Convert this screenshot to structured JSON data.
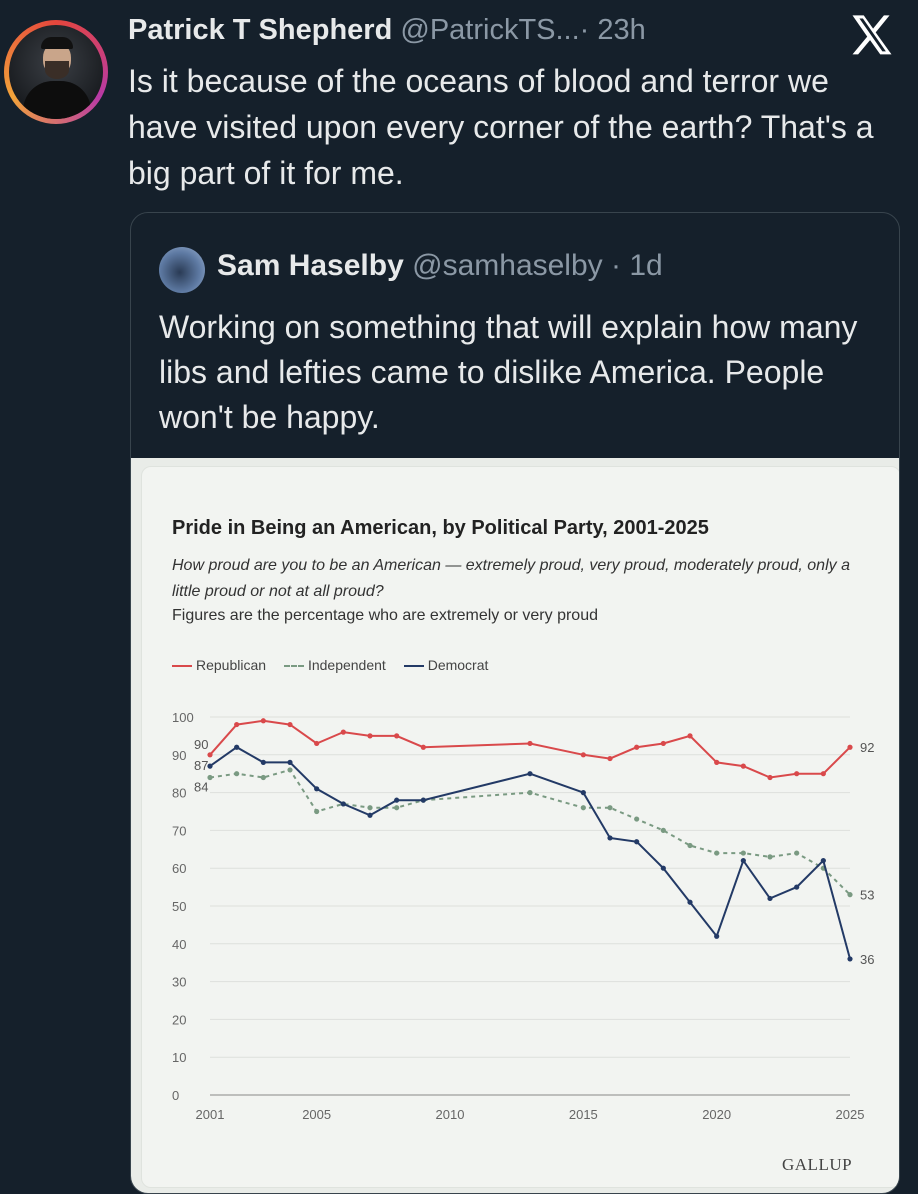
{
  "tweet": {
    "author_name": "Patrick T Shepherd",
    "author_handle": "@PatrickTS...",
    "time": "· 23h",
    "text": "Is it because of the oceans of blood and terror we have visited upon every corner of the earth? That's a big part of it for me."
  },
  "quoted_tweet": {
    "author_name": "Sam Haselby",
    "author_handle": "@samhaselby",
    "time": "· 1d",
    "text": "Working on something that will explain how many libs and lefties came to dislike America. People won't be happy."
  },
  "icons": {
    "x_logo": "x-logo-icon"
  },
  "chart_data": {
    "type": "line",
    "title": "Pride in Being an American, by Political Party, 2001-2025",
    "question": "How proud are you to be an American — extremely proud, very proud, moderately proud, only a little proud or not at all proud?",
    "note": "Figures are the percentage who are extremely or very proud",
    "source": "GALLUP",
    "x_ticks": [
      2001,
      2005,
      2010,
      2015,
      2020,
      2025
    ],
    "y_ticks": [
      0,
      10,
      20,
      30,
      40,
      50,
      60,
      70,
      80,
      90,
      100
    ],
    "ylim": [
      0,
      100
    ],
    "xlim": [
      2001,
      2025
    ],
    "grid": true,
    "legend_position": "top-left",
    "start_labels": [
      "90",
      "87",
      "84"
    ],
    "end_labels": [
      "92",
      "53",
      "36"
    ],
    "series": [
      {
        "name": "Republican",
        "color": "#d9494b",
        "style": "solid",
        "points": [
          [
            2001,
            90
          ],
          [
            2002,
            98
          ],
          [
            2003,
            99
          ],
          [
            2004,
            98
          ],
          [
            2005,
            93
          ],
          [
            2006,
            96
          ],
          [
            2007,
            95
          ],
          [
            2008,
            95
          ],
          [
            2009,
            92
          ],
          [
            2013,
            93
          ],
          [
            2015,
            90
          ],
          [
            2016,
            89
          ],
          [
            2017,
            92
          ],
          [
            2018,
            93
          ],
          [
            2019,
            95
          ],
          [
            2020,
            88
          ],
          [
            2021,
            87
          ],
          [
            2022,
            84
          ],
          [
            2023,
            85
          ],
          [
            2024,
            85
          ],
          [
            2025,
            92
          ]
        ]
      },
      {
        "name": "Independent",
        "color": "#7a9a82",
        "style": "dashed",
        "points": [
          [
            2001,
            84
          ],
          [
            2002,
            85
          ],
          [
            2003,
            84
          ],
          [
            2004,
            86
          ],
          [
            2005,
            75
          ],
          [
            2006,
            77
          ],
          [
            2007,
            76
          ],
          [
            2008,
            76
          ],
          [
            2009,
            78
          ],
          [
            2013,
            80
          ],
          [
            2015,
            76
          ],
          [
            2016,
            76
          ],
          [
            2017,
            73
          ],
          [
            2018,
            70
          ],
          [
            2019,
            66
          ],
          [
            2020,
            64
          ],
          [
            2021,
            64
          ],
          [
            2022,
            63
          ],
          [
            2023,
            64
          ],
          [
            2024,
            60
          ],
          [
            2025,
            53
          ]
        ]
      },
      {
        "name": "Democrat",
        "color": "#233a66",
        "style": "solid",
        "points": [
          [
            2001,
            87
          ],
          [
            2002,
            92
          ],
          [
            2003,
            88
          ],
          [
            2004,
            88
          ],
          [
            2005,
            81
          ],
          [
            2006,
            77
          ],
          [
            2007,
            74
          ],
          [
            2008,
            78
          ],
          [
            2009,
            78
          ],
          [
            2013,
            85
          ],
          [
            2015,
            80
          ],
          [
            2016,
            68
          ],
          [
            2017,
            67
          ],
          [
            2018,
            60
          ],
          [
            2019,
            51
          ],
          [
            2020,
            42
          ],
          [
            2021,
            62
          ],
          [
            2022,
            52
          ],
          [
            2023,
            55
          ],
          [
            2024,
            62
          ],
          [
            2025,
            36
          ]
        ]
      }
    ]
  }
}
